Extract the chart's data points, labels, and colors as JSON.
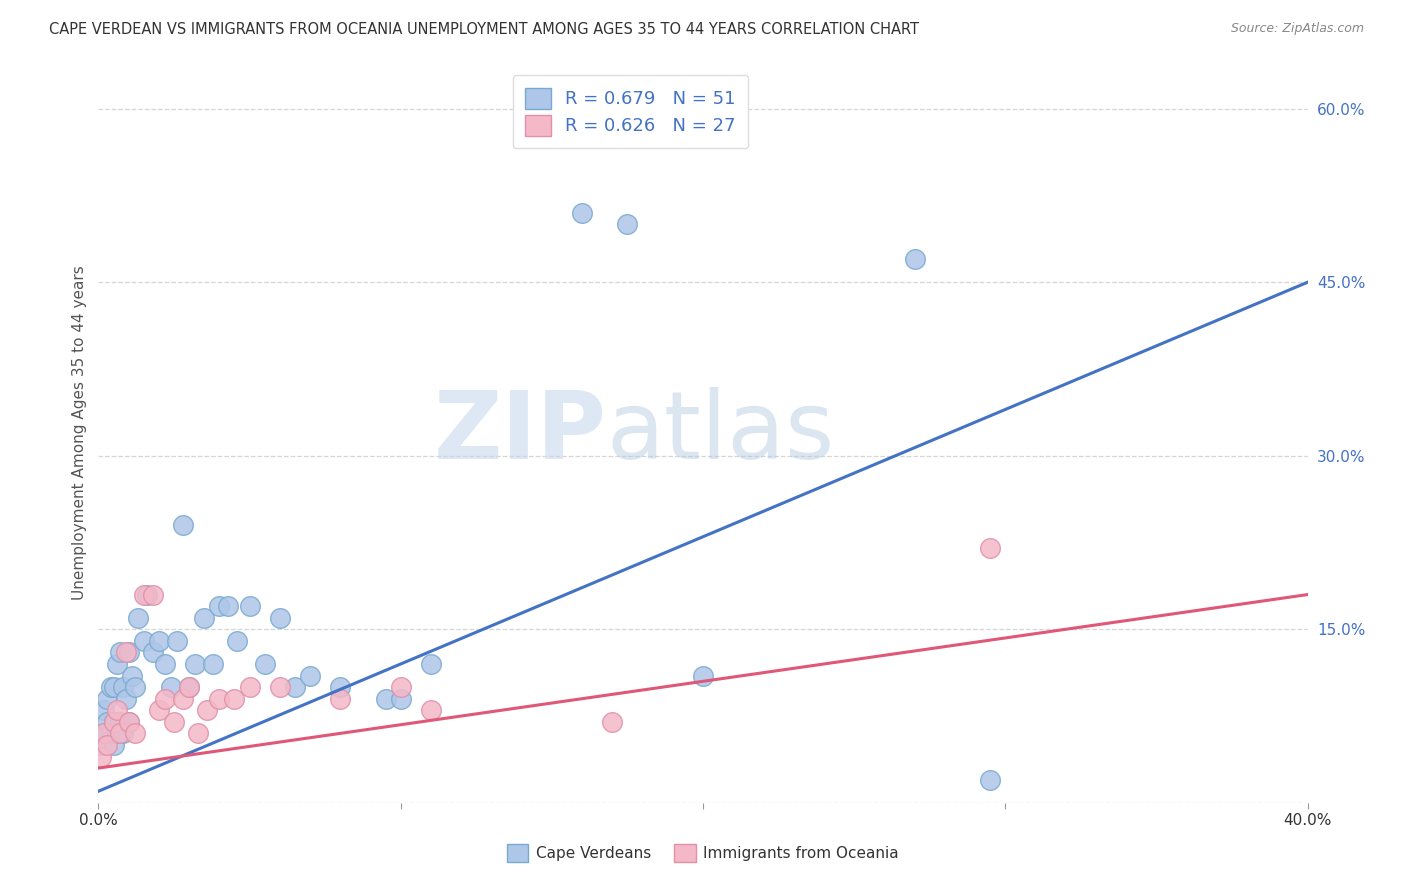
{
  "title": "CAPE VERDEAN VS IMMIGRANTS FROM OCEANIA UNEMPLOYMENT AMONG AGES 35 TO 44 YEARS CORRELATION CHART",
  "source": "Source: ZipAtlas.com",
  "ylabel": "Unemployment Among Ages 35 to 44 years",
  "watermark_zip": "ZIP",
  "watermark_atlas": "atlas",
  "legend_entries": [
    {
      "label": "Cape Verdeans",
      "color": "#aec6e8",
      "R": "0.679",
      "N": "51"
    },
    {
      "label": "Immigrants from Oceania",
      "color": "#f4b8c8",
      "R": "0.626",
      "N": "27"
    }
  ],
  "blue_line_color": "#4472C4",
  "pink_line_color": "#E05878",
  "blue_scatter_color": "#aec6e8",
  "pink_scatter_color": "#f4b8c8",
  "blue_scatter_edge": "#7AAAD0",
  "pink_scatter_edge": "#E090A8",
  "background_color": "#ffffff",
  "grid_color": "#cccccc",
  "xlim": [
    0.0,
    0.4
  ],
  "ylim": [
    0.0,
    0.64
  ],
  "blue_scatter_x": [
    0.001,
    0.002,
    0.002,
    0.003,
    0.003,
    0.004,
    0.004,
    0.005,
    0.005,
    0.005,
    0.006,
    0.006,
    0.007,
    0.007,
    0.008,
    0.008,
    0.009,
    0.01,
    0.01,
    0.011,
    0.012,
    0.013,
    0.015,
    0.016,
    0.018,
    0.02,
    0.022,
    0.024,
    0.026,
    0.028,
    0.03,
    0.032,
    0.035,
    0.038,
    0.04,
    0.043,
    0.046,
    0.05,
    0.055,
    0.06,
    0.065,
    0.07,
    0.08,
    0.095,
    0.1,
    0.11,
    0.16,
    0.175,
    0.2,
    0.27,
    0.295
  ],
  "blue_scatter_y": [
    0.05,
    0.06,
    0.08,
    0.07,
    0.09,
    0.06,
    0.1,
    0.05,
    0.07,
    0.1,
    0.06,
    0.12,
    0.07,
    0.13,
    0.06,
    0.1,
    0.09,
    0.07,
    0.13,
    0.11,
    0.1,
    0.16,
    0.14,
    0.18,
    0.13,
    0.14,
    0.12,
    0.1,
    0.14,
    0.24,
    0.1,
    0.12,
    0.16,
    0.12,
    0.17,
    0.17,
    0.14,
    0.17,
    0.12,
    0.16,
    0.1,
    0.11,
    0.1,
    0.09,
    0.09,
    0.12,
    0.51,
    0.5,
    0.11,
    0.47,
    0.02
  ],
  "pink_scatter_x": [
    0.001,
    0.002,
    0.003,
    0.005,
    0.006,
    0.007,
    0.009,
    0.01,
    0.012,
    0.015,
    0.018,
    0.02,
    0.022,
    0.025,
    0.028,
    0.03,
    0.033,
    0.036,
    0.04,
    0.045,
    0.05,
    0.06,
    0.08,
    0.1,
    0.11,
    0.295,
    0.17
  ],
  "pink_scatter_y": [
    0.04,
    0.06,
    0.05,
    0.07,
    0.08,
    0.06,
    0.13,
    0.07,
    0.06,
    0.18,
    0.18,
    0.08,
    0.09,
    0.07,
    0.09,
    0.1,
    0.06,
    0.08,
    0.09,
    0.09,
    0.1,
    0.1,
    0.09,
    0.1,
    0.08,
    0.22,
    0.07
  ],
  "blue_line_x": [
    0.0,
    0.4
  ],
  "blue_line_y": [
    0.01,
    0.45
  ],
  "pink_line_x": [
    0.0,
    0.4
  ],
  "pink_line_y": [
    0.03,
    0.18
  ]
}
